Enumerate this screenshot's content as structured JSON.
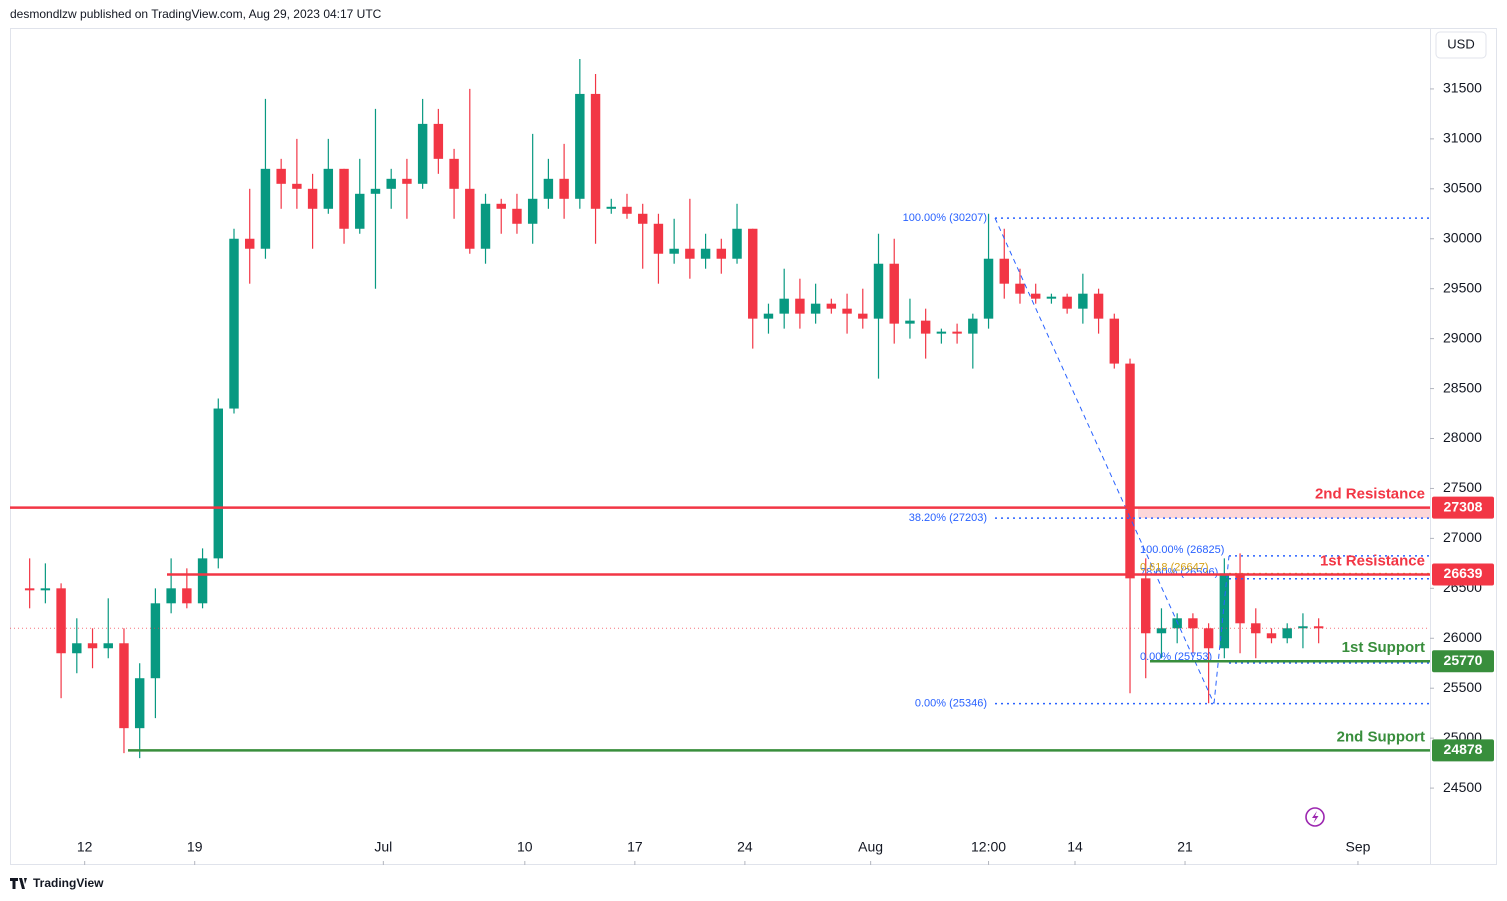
{
  "header": {
    "byline": "desmondlzw published on TradingView.com, Aug 29, 2023 04:17 UTC",
    "currency": "USD",
    "logo": "TradingView"
  },
  "chart_data": {
    "type": "candlestick",
    "up_color": "#089981",
    "down_color": "#f23645",
    "xlim": [
      "Jun 7 06:00",
      "Sep 5 14:00"
    ],
    "xticks": [
      {
        "value": "Jun 12",
        "label": "12"
      },
      {
        "value": "Jun 19",
        "label": "19"
      },
      {
        "value": "Jul 1",
        "label": "Jul"
      },
      {
        "value": "Jul 10",
        "label": "10"
      },
      {
        "value": "Jul 17",
        "label": "17"
      },
      {
        "value": "Jul 24",
        "label": "24"
      },
      {
        "value": "Aug 1",
        "label": "Aug"
      },
      {
        "value": "Aug 8 12:00",
        "label": "12:00"
      },
      {
        "value": "Aug 14",
        "label": "14"
      },
      {
        "value": "Aug 21",
        "label": "21"
      },
      {
        "value": "Sep 1",
        "label": "Sep"
      }
    ],
    "ylim": [
      23730,
      32110
    ],
    "yticks": [
      24500,
      25000,
      25500,
      26000,
      26500,
      27000,
      27500,
      28000,
      28500,
      29000,
      29500,
      30000,
      30500,
      31000,
      31500
    ],
    "x": [
      "Jun 8",
      "Jun 9",
      "Jun 10",
      "Jun 11",
      "Jun 12",
      "Jun 13",
      "Jun 14",
      "Jun 15",
      "Jun 16",
      "Jun 17",
      "Jun 18",
      "Jun 19",
      "Jun 20",
      "Jun 21",
      "Jun 22",
      "Jun 23",
      "Jun 24",
      "Jun 25",
      "Jun 26",
      "Jun 27",
      "Jun 28",
      "Jun 29",
      "Jun 30",
      "Jul 1",
      "Jul 2",
      "Jul 3",
      "Jul 4",
      "Jul 5",
      "Jul 6",
      "Jul 7",
      "Jul 8",
      "Jul 9",
      "Jul 10",
      "Jul 11",
      "Jul 12",
      "Jul 13",
      "Jul 14",
      "Jul 15",
      "Jul 16",
      "Jul 17",
      "Jul 18",
      "Jul 19",
      "Jul 20",
      "Jul 21",
      "Jul 22",
      "Jul 23",
      "Jul 24",
      "Jul 25",
      "Jul 26",
      "Jul 27",
      "Jul 28",
      "Jul 29",
      "Jul 30",
      "Jul 31",
      "Aug 1",
      "Aug 2",
      "Aug 3",
      "Aug 4",
      "Aug 5",
      "Aug 6",
      "Aug 7",
      "Aug 8",
      "Aug 9",
      "Aug 10",
      "Aug 11",
      "Aug 12",
      "Aug 13",
      "Aug 14",
      "Aug 15",
      "Aug 16",
      "Aug 17",
      "Aug 18",
      "Aug 19",
      "Aug 20",
      "Aug 21",
      "Aug 22",
      "Aug 23",
      "Aug 24",
      "Aug 25",
      "Aug 26",
      "Aug 27",
      "Aug 28",
      "Aug 29"
    ],
    "open": [
      26500,
      26480,
      26500,
      25850,
      25950,
      25900,
      25950,
      25100,
      25600,
      26350,
      26500,
      26350,
      26800,
      28300,
      30000,
      29900,
      30700,
      30550,
      30500,
      30300,
      30700,
      30100,
      30450,
      30500,
      30600,
      30550,
      31150,
      30800,
      30500,
      29900,
      30350,
      30300,
      30150,
      30400,
      30600,
      30400,
      31450,
      30300,
      30320,
      30250,
      30150,
      29850,
      29900,
      29800,
      29900,
      29800,
      30100,
      29200,
      29250,
      29400,
      29250,
      29350,
      29300,
      29250,
      29200,
      29750,
      29150,
      29180,
      29050,
      29070,
      29050,
      29200,
      29800,
      29550,
      29450,
      29400,
      29420,
      29300,
      29450,
      29200,
      28750,
      26600,
      26050,
      26100,
      26200,
      26100,
      25900,
      26650,
      26150,
      26050,
      26000,
      26100,
      26120
    ],
    "high": [
      26800,
      26750,
      26550,
      26200,
      26100,
      26400,
      26100,
      25750,
      26500,
      26800,
      26700,
      26900,
      28400,
      30100,
      30500,
      31400,
      30800,
      31000,
      30650,
      31000,
      30700,
      30800,
      31300,
      30700,
      30800,
      31400,
      31300,
      30900,
      31500,
      30450,
      30400,
      30450,
      31050,
      30800,
      30950,
      31800,
      31650,
      30400,
      30450,
      30350,
      30250,
      30200,
      30400,
      30050,
      30000,
      30350,
      30100,
      29350,
      29700,
      29600,
      29550,
      29400,
      29450,
      29500,
      30050,
      30000,
      29400,
      29300,
      29100,
      29150,
      29250,
      30250,
      30100,
      29700,
      29550,
      29450,
      29450,
      29650,
      29500,
      29250,
      28800,
      26800,
      26300,
      26250,
      26250,
      26150,
      26800,
      26850,
      26300,
      26100,
      26150,
      26250,
      26200
    ],
    "low": [
      26300,
      26350,
      25400,
      25650,
      25700,
      25800,
      24850,
      24800,
      25200,
      26250,
      26300,
      26300,
      26700,
      28250,
      29550,
      29800,
      30300,
      30300,
      29900,
      30250,
      29950,
      30050,
      29500,
      30300,
      30200,
      30500,
      30650,
      30200,
      29850,
      29750,
      30050,
      30050,
      29950,
      30300,
      30200,
      30300,
      29950,
      30250,
      30200,
      29700,
      29550,
      29750,
      29600,
      29700,
      29650,
      29750,
      28900,
      29050,
      29100,
      29100,
      29150,
      29250,
      29050,
      29100,
      28600,
      28950,
      29000,
      28800,
      28950,
      28950,
      28700,
      29100,
      29400,
      29350,
      29350,
      29350,
      29250,
      29150,
      29050,
      28700,
      25450,
      25600,
      25800,
      25950,
      25850,
      25350,
      25800,
      25850,
      25800,
      25950,
      25950,
      25900,
      25950
    ],
    "close": [
      26480,
      26500,
      25850,
      25950,
      25900,
      25950,
      25100,
      25600,
      26350,
      26500,
      26350,
      26800,
      28300,
      30000,
      29900,
      30700,
      30550,
      30500,
      30300,
      30700,
      30100,
      30450,
      30500,
      30600,
      30550,
      31150,
      30800,
      30500,
      29900,
      30350,
      30300,
      30150,
      30400,
      30600,
      30400,
      31450,
      30300,
      30320,
      30250,
      30150,
      29850,
      29900,
      29800,
      29900,
      29800,
      30100,
      29200,
      29250,
      29400,
      29250,
      29350,
      29300,
      29250,
      29200,
      29750,
      29150,
      29180,
      29050,
      29070,
      29050,
      29200,
      29800,
      29550,
      29450,
      29400,
      29420,
      29300,
      29450,
      29200,
      28750,
      26600,
      26050,
      26100,
      26200,
      26100,
      25900,
      26650,
      26150,
      26050,
      26000,
      26100,
      26120,
      26100
    ],
    "levels": [
      {
        "name": "2nd Resistance",
        "value": 27308,
        "color": "#f23645"
      },
      {
        "name": "1st Resistance",
        "value": 26639,
        "color": "#f23645"
      },
      {
        "name": "1st Support",
        "value": 25770,
        "color": "#388e3c"
      },
      {
        "name": "2nd Support",
        "value": 24878,
        "color": "#388e3c"
      }
    ],
    "fib_major": {
      "color": "#2962ff",
      "levels": [
        {
          "label": "100.00% (30207)",
          "value": 30207
        },
        {
          "label": "38.20% (27203)",
          "value": 27203
        },
        {
          "label": "0.00% (25346)",
          "value": 25346
        }
      ]
    },
    "fib_minor": {
      "levels": [
        {
          "label": "100.00% (26825)",
          "value": 26825,
          "color": "#2962ff"
        },
        {
          "label": "78.60% (26596)",
          "value": 26596,
          "color": "#2962ff"
        },
        {
          "label": "0.618 (26647)",
          "value": 26647,
          "color": "#d4a017"
        },
        {
          "label": "0.00% (25753)",
          "value": 25753,
          "color": "#2962ff"
        }
      ]
    }
  }
}
